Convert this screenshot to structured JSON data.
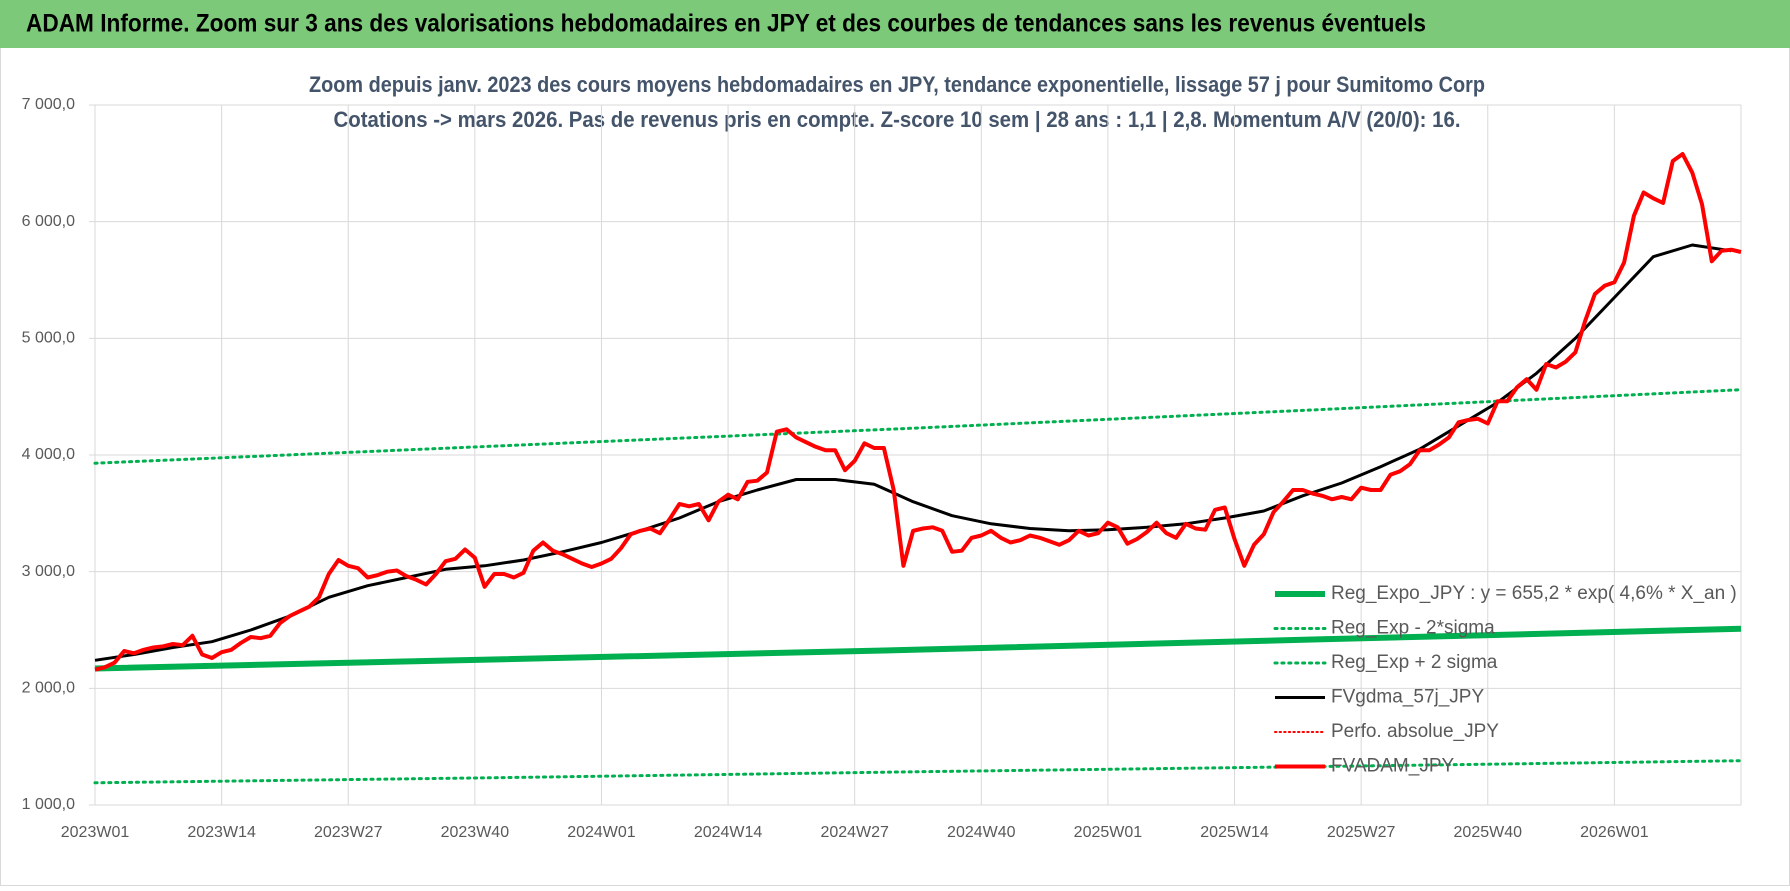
{
  "header": "ADAM Informe. Zoom sur 3 ans des valorisations hebdomadaires en JPY et des courbes de tendances sans les revenus éventuels",
  "chart_data": {
    "type": "line",
    "title": "Zoom depuis janv. 2023 des cours moyens hebdomadaires en JPY, tendance exponentielle, lissage 57 j pour Sumitomo Corp",
    "subtitle": "Cotations -> mars 2026. Pas de revenus pris en compte. Z-score 10 sem | 28 ans : 1,1 | 2,8. Momentum A/V (20/0): 16.",
    "xlim": [
      0,
      169
    ],
    "xticks": [
      {
        "value": 0,
        "label": "2023W01"
      },
      {
        "value": 13,
        "label": "2023W14"
      },
      {
        "value": 26,
        "label": "2023W27"
      },
      {
        "value": 39,
        "label": "2023W40"
      },
      {
        "value": 52,
        "label": "2024W01"
      },
      {
        "value": 65,
        "label": "2024W14"
      },
      {
        "value": 78,
        "label": "2024W27"
      },
      {
        "value": 91,
        "label": "2024W40"
      },
      {
        "value": 104,
        "label": "2025W01"
      },
      {
        "value": 117,
        "label": "2025W14"
      },
      {
        "value": 130,
        "label": "2025W27"
      },
      {
        "value": 143,
        "label": "2025W40"
      },
      {
        "value": 156,
        "label": "2026W01"
      }
    ],
    "ylim": [
      1000,
      7000
    ],
    "yticks": [
      {
        "value": 1000,
        "label": "1 000,0"
      },
      {
        "value": 2000,
        "label": "2 000,0"
      },
      {
        "value": 3000,
        "label": "3 000,0"
      },
      {
        "value": 4000,
        "label": "4 000,0"
      },
      {
        "value": 5000,
        "label": "5 000,0"
      },
      {
        "value": 6000,
        "label": "6 000,0"
      },
      {
        "value": 7000,
        "label": "7 000,0"
      }
    ],
    "grid": true,
    "legend": "lower-right",
    "series": [
      {
        "name": "Reg_Expo_JPY : y = 655,2 * exp( 4,6% *  X_an )",
        "color": "#00b050",
        "style": "solid",
        "width": 6,
        "x": [
          0,
          42,
          84,
          126,
          169
        ],
        "values": [
          2170,
          2250,
          2330,
          2420,
          2510
        ]
      },
      {
        "name": "Reg_Exp - 2*sigma",
        "color": "#00b050",
        "style": "dotted",
        "width": 3,
        "x": [
          0,
          42,
          84,
          126,
          169
        ],
        "values": [
          1190,
          1235,
          1285,
          1330,
          1380
        ]
      },
      {
        "name": "Reg_Exp + 2 sigma",
        "color": "#00b050",
        "style": "dotted",
        "width": 3,
        "x": [
          0,
          42,
          84,
          126,
          169
        ],
        "values": [
          3930,
          4080,
          4230,
          4390,
          4560
        ]
      },
      {
        "name": "FVgdma_57j_JPY",
        "color": "#000000",
        "style": "solid",
        "width": 3,
        "x": [
          0,
          4,
          8,
          12,
          16,
          20,
          24,
          28,
          32,
          36,
          40,
          44,
          48,
          52,
          56,
          60,
          64,
          68,
          72,
          76,
          80,
          84,
          88,
          92,
          96,
          100,
          104,
          108,
          112,
          116,
          120,
          124,
          128,
          132,
          136,
          140,
          144,
          148,
          152,
          156,
          160,
          164,
          168
        ],
        "values": [
          2240,
          2290,
          2350,
          2400,
          2500,
          2620,
          2780,
          2880,
          2950,
          3020,
          3050,
          3100,
          3170,
          3250,
          3350,
          3460,
          3600,
          3700,
          3790,
          3790,
          3750,
          3600,
          3480,
          3410,
          3370,
          3350,
          3360,
          3380,
          3410,
          3460,
          3520,
          3650,
          3760,
          3900,
          4050,
          4250,
          4450,
          4700,
          5000,
          5350,
          5700,
          5800,
          5750
        ]
      },
      {
        "name": "Perfo. absolue_JPY",
        "color": "#ff0000",
        "style": "dotted",
        "width": 2,
        "x": [],
        "values": []
      },
      {
        "name": "FVADAM_JPY",
        "color": "#ff0000",
        "style": "solid",
        "width": 4,
        "x": [
          0,
          1,
          2,
          3,
          4,
          5,
          6,
          7,
          8,
          9,
          10,
          11,
          12,
          13,
          14,
          15,
          16,
          17,
          18,
          19,
          20,
          21,
          22,
          23,
          24,
          25,
          26,
          27,
          28,
          29,
          30,
          31,
          32,
          33,
          34,
          35,
          36,
          37,
          38,
          39,
          40,
          41,
          42,
          43,
          44,
          45,
          46,
          47,
          48,
          49,
          50,
          51,
          52,
          53,
          54,
          55,
          56,
          57,
          58,
          59,
          60,
          61,
          62,
          63,
          64,
          65,
          66,
          67,
          68,
          69,
          70,
          71,
          72,
          73,
          74,
          75,
          76,
          77,
          78,
          79,
          80,
          81,
          82,
          83,
          84,
          85,
          86,
          87,
          88,
          89,
          90,
          91,
          92,
          93,
          94,
          95,
          96,
          97,
          98,
          99,
          100,
          101,
          102,
          103,
          104,
          105,
          106,
          107,
          108,
          109,
          110,
          111,
          112,
          113,
          114,
          115,
          116,
          117,
          118,
          119,
          120,
          121,
          122,
          123,
          124,
          125,
          126,
          127,
          128,
          129,
          130,
          131,
          132,
          133,
          134,
          135,
          136,
          137,
          138,
          139,
          140,
          141,
          142,
          143,
          144,
          145,
          146,
          147,
          148,
          149,
          150,
          151,
          152,
          153,
          154,
          155,
          156,
          157,
          158,
          159,
          160,
          161,
          162,
          163,
          164,
          165,
          166,
          167,
          168,
          169
        ],
        "values": [
          2160,
          2180,
          2220,
          2320,
          2300,
          2330,
          2350,
          2360,
          2380,
          2370,
          2450,
          2290,
          2260,
          2310,
          2330,
          2390,
          2440,
          2430,
          2450,
          2560,
          2620,
          2660,
          2700,
          2780,
          2980,
          3100,
          3050,
          3030,
          2950,
          2970,
          3000,
          3010,
          2960,
          2930,
          2890,
          2980,
          3090,
          3110,
          3190,
          3120,
          2870,
          2980,
          2980,
          2950,
          2990,
          3180,
          3250,
          3180,
          3150,
          3110,
          3070,
          3040,
          3070,
          3110,
          3200,
          3320,
          3350,
          3370,
          3330,
          3450,
          3580,
          3560,
          3580,
          3440,
          3600,
          3660,
          3620,
          3770,
          3780,
          3850,
          4200,
          4220,
          4150,
          4110,
          4070,
          4040,
          4040,
          3870,
          3950,
          4100,
          4060,
          4060,
          3700,
          3050,
          3350,
          3370,
          3380,
          3350,
          3170,
          3180,
          3290,
          3310,
          3350,
          3290,
          3250,
          3270,
          3310,
          3290,
          3260,
          3230,
          3270,
          3350,
          3310,
          3330,
          3420,
          3380,
          3240,
          3280,
          3340,
          3420,
          3330,
          3290,
          3410,
          3370,
          3360,
          3530,
          3550,
          3280,
          3050,
          3230,
          3320,
          3510,
          3600,
          3700,
          3700,
          3670,
          3650,
          3620,
          3640,
          3620,
          3720,
          3700,
          3700,
          3830,
          3860,
          3920,
          4040,
          4040,
          4090,
          4150,
          4280,
          4300,
          4310,
          4270,
          4460,
          4460,
          4580,
          4650,
          4560,
          4780,
          4750,
          4800,
          4880,
          5150,
          5380,
          5450,
          5480,
          5650,
          6050,
          6250,
          6200,
          6160,
          6520,
          6580,
          6420,
          6150,
          5660,
          5750,
          5760,
          5740
        ]
      }
    ]
  }
}
